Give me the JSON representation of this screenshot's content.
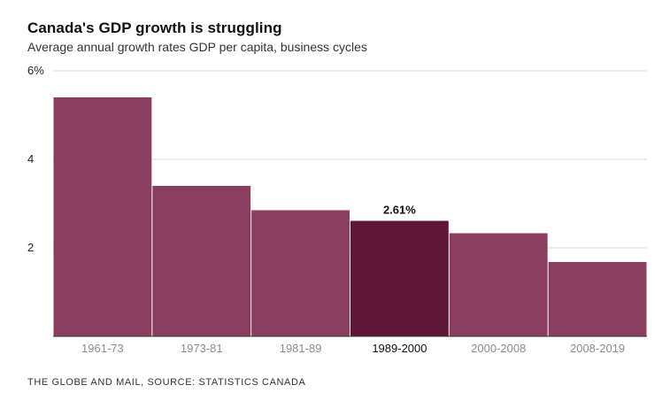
{
  "header": {
    "title": "Canada's GDP growth is struggling",
    "subtitle": "Average annual growth rates GDP per capita, business cycles"
  },
  "footer": {
    "source": "THE GLOBE AND MAIL, SOURCE: STATISTICS CANADA"
  },
  "colors": {
    "bar": "#8a3e60",
    "bar_highlight": "#5f1738",
    "grid": "#d9d9d9",
    "axis": "#333333",
    "tick_label_muted": "#8c8c8c",
    "tick_label_highlight": "#111111"
  },
  "chart_data": {
    "type": "bar",
    "title": "Canada's GDP growth is struggling",
    "subtitle": "Average annual growth rates GDP per capita, business cycles",
    "xlabel": "",
    "ylabel": "",
    "categories": [
      "1961-73",
      "1973-81",
      "1981-89",
      "1989-2000",
      "2000-2008",
      "2008-2019"
    ],
    "values": [
      5.4,
      3.4,
      2.85,
      2.61,
      2.33,
      1.68
    ],
    "ylim": [
      0,
      6
    ],
    "yticks": [
      2,
      4,
      6
    ],
    "ytick_labels": [
      "2",
      "4",
      "6%"
    ],
    "highlight_index": 3,
    "annotations": [
      {
        "category": "1989-2000",
        "text": "2.61%"
      }
    ],
    "grid": true,
    "legend": "none"
  }
}
